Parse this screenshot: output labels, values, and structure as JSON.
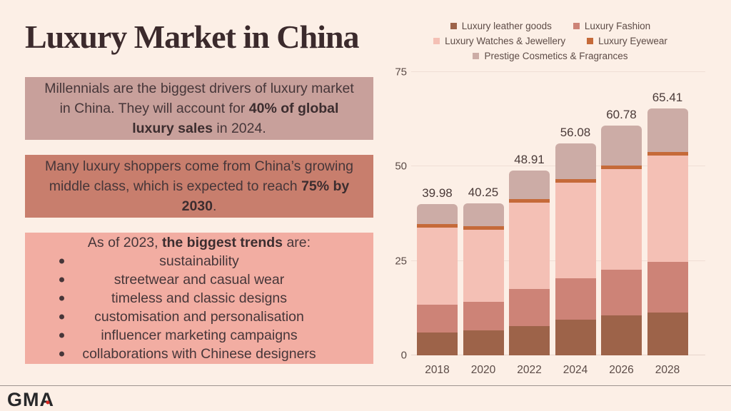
{
  "title": "Luxury Market in China",
  "colors": {
    "background": "#fcefe6",
    "title_text": "#3b2a2c",
    "body_text": "#463639",
    "fact_box_1_bg": "#c8a09b",
    "fact_box_2_bg": "#c87e6d",
    "fact_box_3_bg": "#f2ada2",
    "axis_text": "#5b4b47",
    "gridline": "#f0ded5",
    "divider": "#9d948f",
    "logo_text": "#27282a",
    "logo_dot": "#d8231f"
  },
  "facts": [
    {
      "bg": "#c8a09b",
      "segments": [
        {
          "t": "Millennials are the biggest drivers of luxury market in China. They will account for "
        },
        {
          "t": "40% of global luxury sales",
          "b": true
        },
        {
          "t": " in 2024."
        }
      ]
    },
    {
      "bg": "#c87e6d",
      "segments": [
        {
          "t": "Many luxury shoppers come from China’s growing middle class, which is expected to reach "
        },
        {
          "t": "75% by 2030",
          "b": true
        },
        {
          "t": "."
        }
      ]
    },
    {
      "bg": "#f2ada2",
      "segments": [
        {
          "t": "As of 2023, "
        },
        {
          "t": "the biggest trends",
          "b": true
        },
        {
          "t": " are:"
        }
      ],
      "bullets": [
        "sustainability",
        "streetwear and casual wear",
        "timeless and classic designs",
        "customisation and personalisation",
        "influencer marketing campaigns",
        "collaborations with Chinese designers"
      ]
    }
  ],
  "chart_data": {
    "type": "bar",
    "stacked": true,
    "categories": [
      "2018",
      "2020",
      "2022",
      "2024",
      "2026",
      "2028"
    ],
    "series": [
      {
        "name": "Luxury leather goods",
        "color": "#9d6349",
        "values": [
          6.0,
          6.6,
          7.8,
          9.4,
          10.5,
          11.4
        ]
      },
      {
        "name": "Luxury Fashion",
        "color": "#cd8377",
        "values": [
          7.4,
          7.6,
          9.8,
          11.1,
          12.1,
          13.4
        ]
      },
      {
        "name": "Luxury Watches & Jewellery",
        "color": "#f4c0b5",
        "values": [
          20.4,
          19.1,
          22.8,
          25.3,
          26.8,
          28.1
        ]
      },
      {
        "name": "Luxury Eyewear",
        "color": "#c56a39",
        "values": [
          0.9,
          0.9,
          0.9,
          0.9,
          0.9,
          1.0
        ]
      },
      {
        "name": "Prestige Cosmetics & Fragrances",
        "color": "#ccaca6",
        "values": [
          5.28,
          6.05,
          7.61,
          9.38,
          10.48,
          11.51
        ]
      }
    ],
    "totals": [
      39.98,
      40.25,
      48.91,
      56.08,
      60.78,
      65.41
    ],
    "total_labels": [
      "39.98",
      "40.25",
      "48.91",
      "56.08",
      "60.78",
      "65.41"
    ],
    "ylim": [
      0,
      75
    ],
    "yticks": [
      0,
      25,
      50,
      75
    ],
    "grid": true,
    "legend_position": "top"
  },
  "footer": {
    "logo_text": "GMA"
  }
}
